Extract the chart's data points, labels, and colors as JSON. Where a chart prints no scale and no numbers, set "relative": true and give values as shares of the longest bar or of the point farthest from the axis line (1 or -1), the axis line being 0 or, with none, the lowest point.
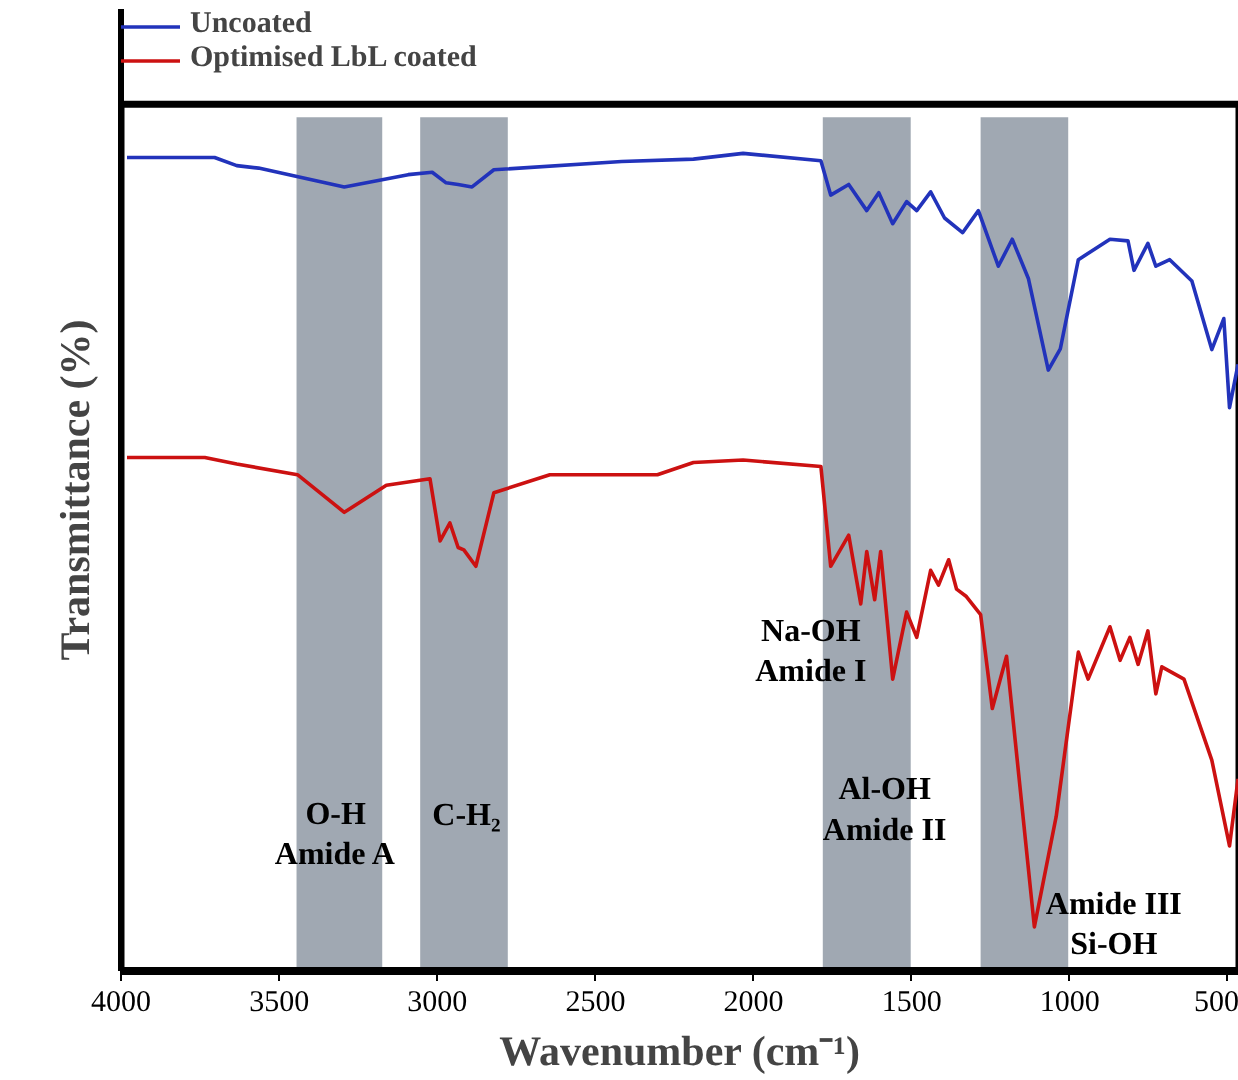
{
  "chart_data": {
    "type": "line",
    "relative": true,
    "xlabel": "Wavenumber (cm⁻¹)",
    "ylabel": "Transmittance (%)",
    "xlim": [
      4000,
      465
    ],
    "xticks": [
      4000,
      3500,
      3000,
      2500,
      2000,
      1500,
      1000,
      500
    ],
    "tick_labels": "x",
    "grid": false,
    "legend": "top left",
    "line_style": "solid",
    "marker": "none",
    "series": [
      {
        "name": "Uncoated",
        "color": "#2233bb",
        "x": [
          3981,
          3704,
          3634,
          3565,
          3294,
          3092,
          3016,
          2972,
          2934,
          2890,
          2821,
          2417,
          2190,
          2033,
          1787,
          1756,
          1699,
          1642,
          1604,
          1560,
          1516,
          1484,
          1440,
          1396,
          1339,
          1289,
          1226,
          1182,
          1131,
          1068,
          1030,
          973,
          873,
          816,
          797,
          753,
          728,
          684,
          614,
          551,
          513,
          495,
          468
        ],
        "values": [
          0.995,
          0.995,
          0.985,
          0.982,
          0.959,
          0.974,
          0.977,
          0.964,
          0.962,
          0.959,
          0.98,
          0.99,
          0.993,
          1.0,
          0.991,
          0.949,
          0.962,
          0.93,
          0.952,
          0.914,
          0.941,
          0.93,
          0.953,
          0.921,
          0.903,
          0.93,
          0.862,
          0.895,
          0.847,
          0.735,
          0.761,
          0.87,
          0.895,
          0.893,
          0.857,
          0.89,
          0.862,
          0.87,
          0.844,
          0.76,
          0.798,
          0.689,
          0.742
        ]
      },
      {
        "name": "Optimised LbL coated",
        "color": "#cc1111",
        "x": [
          3981,
          3735,
          3634,
          3442,
          3294,
          3161,
          3023,
          2991,
          2960,
          2934,
          2916,
          2878,
          2821,
          2644,
          2304,
          2190,
          2033,
          1787,
          1756,
          1699,
          1661,
          1642,
          1617,
          1598,
          1560,
          1516,
          1484,
          1440,
          1415,
          1383,
          1358,
          1327,
          1282,
          1245,
          1200,
          1112,
          1043,
          973,
          942,
          873,
          841,
          810,
          784,
          753,
          728,
          709,
          639,
          551,
          495,
          468
        ],
        "values": [
          0.628,
          0.628,
          0.62,
          0.607,
          0.561,
          0.594,
          0.602,
          0.526,
          0.548,
          0.518,
          0.515,
          0.495,
          0.585,
          0.607,
          0.607,
          0.622,
          0.625,
          0.617,
          0.495,
          0.533,
          0.449,
          0.513,
          0.454,
          0.513,
          0.357,
          0.439,
          0.408,
          0.49,
          0.472,
          0.503,
          0.467,
          0.458,
          0.436,
          0.321,
          0.385,
          0.054,
          0.189,
          0.39,
          0.357,
          0.421,
          0.38,
          0.408,
          0.375,
          0.416,
          0.339,
          0.372,
          0.357,
          0.258,
          0.153,
          0.235
        ]
      }
    ],
    "bands": [
      {
        "axis": "x",
        "from": 3445,
        "to": 3174,
        "color": "#a0a8b2"
      },
      {
        "axis": "x",
        "from": 3054,
        "to": 2777,
        "color": "#a0a8b2"
      },
      {
        "axis": "x",
        "from": 1781,
        "to": 1503,
        "color": "#a0a8b2"
      },
      {
        "axis": "x",
        "from": 1282,
        "to": 1005,
        "color": "#a0a8b2"
      }
    ],
    "annotations": [
      "O-H\nAmide A",
      "C-H₂",
      "Na-OH\nAmide I",
      "Al-OH\nAmide II",
      "Amide III\nSi-OH"
    ]
  }
}
